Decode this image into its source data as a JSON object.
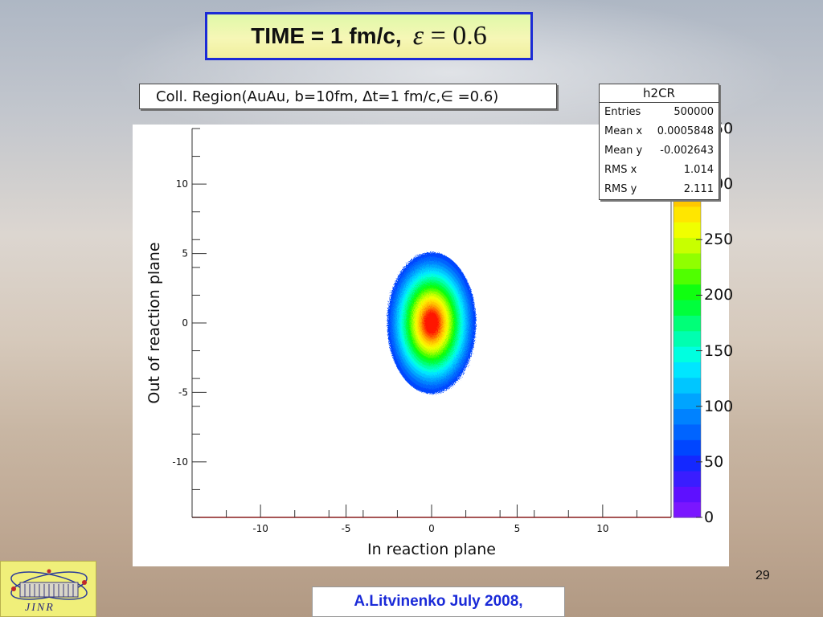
{
  "slide": {
    "title_prefix": "TIME = 1 fm/c,",
    "title_eq_var": "ε",
    "title_eq_rest": " = 0.6",
    "author": "A.Litvinenko July  2008,",
    "page_number": "29",
    "logo_text": "JINR"
  },
  "chart_data": {
    "type": "heatmap",
    "title": "Coll. Region(AuAu, b=10fm, ∆t=1 fm/c,∈ =0.6)",
    "xlabel": "In reaction plane",
    "ylabel": "Out of  reaction plane",
    "xlim": [
      -14,
      14
    ],
    "ylim": [
      -14,
      14
    ],
    "xticks": [
      "-10",
      "-5",
      "0",
      "5",
      "10"
    ],
    "yticks": [
      "10",
      "5",
      "0",
      "-5",
      "-10"
    ],
    "z_range": [
      0,
      350
    ],
    "z_ticks": [
      "0",
      "50",
      "100",
      "150",
      "200",
      "250",
      "300",
      "350"
    ],
    "distribution": {
      "center": [
        0.0006,
        -0.0026
      ],
      "semi_axis_x": 2.6,
      "semi_axis_y": 5.1,
      "rms_x": 1.014,
      "rms_y": 2.111
    },
    "stats": {
      "name": "h2CR",
      "rows": [
        {
          "label": "Entries",
          "value": "500000"
        },
        {
          "label": "Mean x",
          "value": "0.0005848"
        },
        {
          "label": "Mean y",
          "value": "-0.002643"
        },
        {
          "label": "RMS x",
          "value": "1.014"
        },
        {
          "label": "RMS y",
          "value": "2.111"
        }
      ]
    },
    "palette": [
      "#7a16ff",
      "#5e10ff",
      "#3a1dff",
      "#1428ff",
      "#0046ff",
      "#0064ff",
      "#0082ff",
      "#00a4ff",
      "#00c6ff",
      "#00e6ff",
      "#00ffe0",
      "#00ffb0",
      "#00ff78",
      "#00ff3c",
      "#10ff10",
      "#50ff00",
      "#90ff00",
      "#c8ff00",
      "#f0ff00",
      "#ffe600",
      "#ffc800",
      "#ffa000",
      "#ff7000",
      "#ff4000",
      "#ff1800"
    ]
  }
}
